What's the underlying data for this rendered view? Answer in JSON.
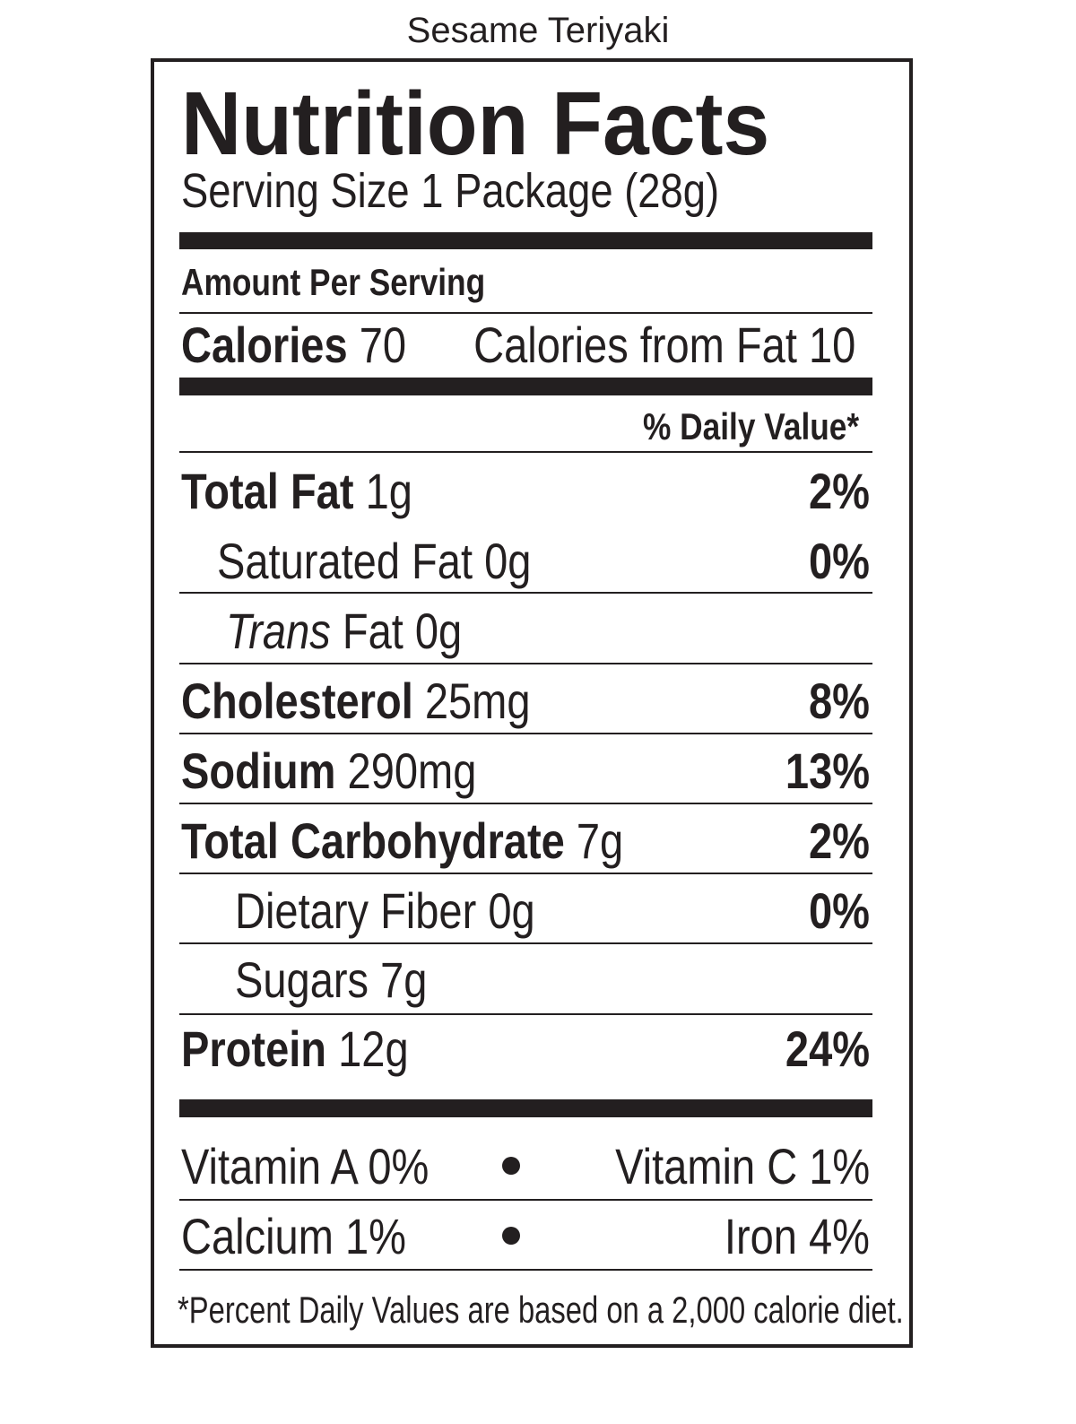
{
  "product_name": "Sesame Teriyaki",
  "heading": "Nutrition Facts",
  "serving_size": "Serving Size 1 Package (28g)",
  "amount_per_serving": "Amount Per Serving",
  "calories": {
    "label": "Calories",
    "value": "70",
    "from_fat_label": "Calories from Fat",
    "from_fat_value": "10"
  },
  "daily_value_header": "% Daily Value*",
  "nutrients": [
    {
      "label": "Total Fat",
      "amount": "1g",
      "dv": "2%"
    },
    {
      "label": "Saturated Fat",
      "amount": "0g",
      "dv": "0%"
    },
    {
      "label": "Trans",
      "label_suffix": "Fat",
      "amount": "0g",
      "dv": ""
    },
    {
      "label": "Cholesterol",
      "amount": "25mg",
      "dv": "8%"
    },
    {
      "label": "Sodium",
      "amount": "290mg",
      "dv": "13%"
    },
    {
      "label": "Total Carbohydrate",
      "amount": "7g",
      "dv": "2%"
    },
    {
      "label": "Dietary Fiber",
      "amount": "0g",
      "dv": "0%"
    },
    {
      "label": "Sugars",
      "amount": "7g",
      "dv": ""
    },
    {
      "label": "Protein",
      "amount": "12g",
      "dv": "24%"
    }
  ],
  "vitamins": [
    {
      "left": "Vitamin A 0%",
      "right": "Vitamin C 1%"
    },
    {
      "left": "Calcium 1%",
      "right": "Iron 4%"
    }
  ],
  "footnote": "*Percent Daily Values are based on a 2,000 calorie diet."
}
